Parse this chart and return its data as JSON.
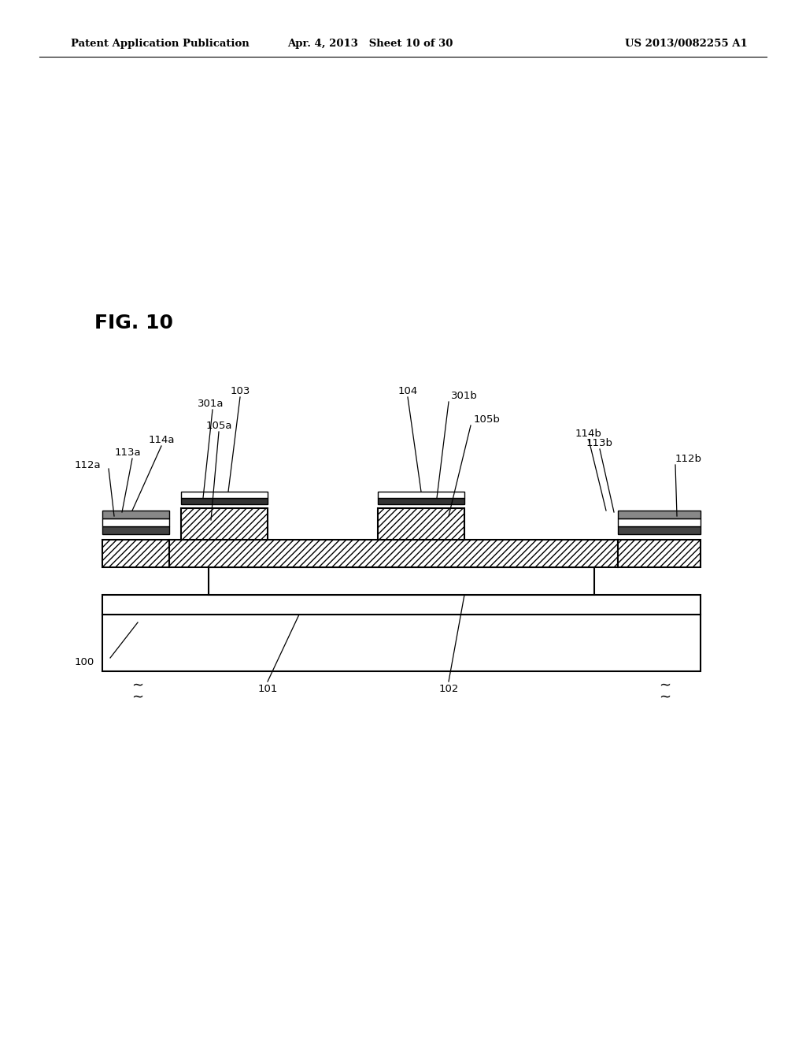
{
  "fig_label": "FIG. 10",
  "header_left": "Patent Application Publication",
  "header_mid": "Apr. 4, 2013   Sheet 10 of 30",
  "header_right": "US 2013/0082255 A1",
  "bg_color": "#ffffff",
  "line_color": "#000000"
}
